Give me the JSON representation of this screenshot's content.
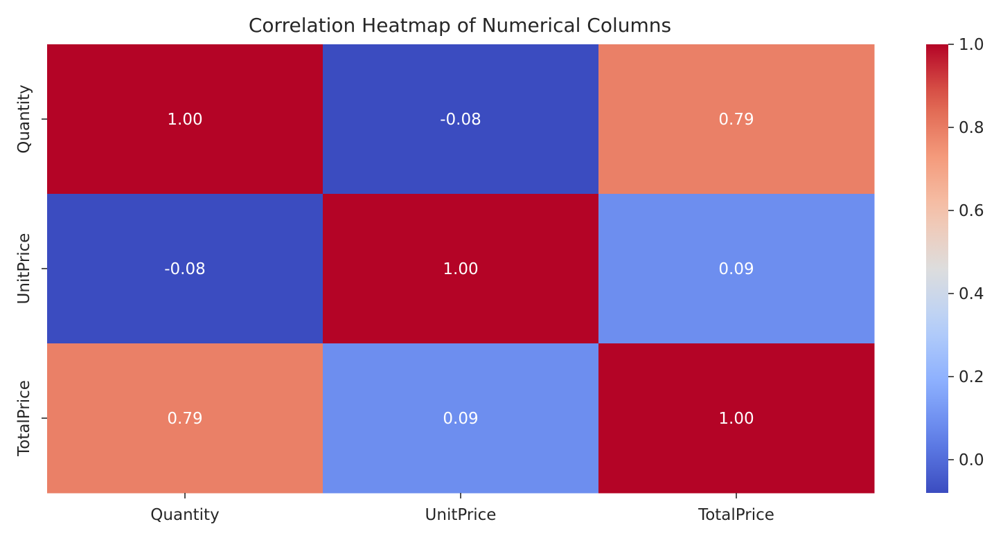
{
  "chart_data": {
    "type": "heatmap",
    "title": "Correlation Heatmap of Numerical Columns",
    "rows": [
      "Quantity",
      "UnitPrice",
      "TotalPrice"
    ],
    "columns": [
      "Quantity",
      "UnitPrice",
      "TotalPrice"
    ],
    "values": [
      [
        1.0,
        -0.08,
        0.79
      ],
      [
        -0.08,
        1.0,
        0.09
      ],
      [
        0.79,
        0.09,
        1.0
      ]
    ],
    "annotations": [
      [
        "1.00",
        "-0.08",
        "0.79"
      ],
      [
        "-0.08",
        "1.00",
        "0.09"
      ],
      [
        "0.79",
        "0.09",
        "1.00"
      ]
    ],
    "colormap": "coolwarm",
    "vmin": -0.08,
    "vmax": 1.0,
    "colorbar": {
      "ticks": [
        0.0,
        0.2,
        0.4,
        0.6,
        0.8,
        1.0
      ],
      "tick_labels": [
        "0.0",
        "0.2",
        "0.4",
        "0.6",
        "0.8",
        "1.0"
      ],
      "placement": "right"
    },
    "annotation_color": "#ffffff",
    "tick_color": "#262626",
    "title_color": "#262626"
  }
}
